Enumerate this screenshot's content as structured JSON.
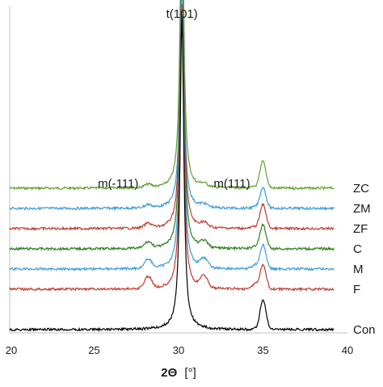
{
  "chart_data": {
    "type": "line",
    "title": "",
    "xlabel_symbol": "2Θ",
    "xlabel_unit": "[°]",
    "ylabel": "",
    "xlim": [
      20,
      40
    ],
    "x_ticks": [
      "20",
      "25",
      "30",
      "35",
      "40"
    ],
    "grid": false,
    "legend": "labels at right end of each trace",
    "annotations": [
      {
        "text": "t(101)",
        "x": 30.2
      },
      {
        "text": "m(-111)",
        "x": 28.2
      },
      {
        "text": "m(111)",
        "x": 31.5
      }
    ],
    "series": [
      {
        "name": "ZC",
        "color": "#5aa02c",
        "baseline": 0.875,
        "peak101": 1.0,
        "peak35": 0.09,
        "m111": 0.01
      },
      {
        "name": "ZM",
        "color": "#3a9ad9",
        "baseline": 0.75,
        "peak101": 0.85,
        "peak35": 0.07,
        "m111": 0.01
      },
      {
        "name": "ZF",
        "color": "#c0392b",
        "baseline": 0.625,
        "peak101": 0.93,
        "peak35": 0.08,
        "m111": 0.015
      },
      {
        "name": "C",
        "color": "#2e7d1f",
        "baseline": 0.5,
        "peak101": 0.98,
        "peak35": 0.08,
        "m111": 0.02
      },
      {
        "name": "M",
        "color": "#3a9ad9",
        "baseline": 0.375,
        "peak101": 0.97,
        "peak35": 0.08,
        "m111": 0.03
      },
      {
        "name": "F",
        "color": "#c0392b",
        "baseline": 0.25,
        "peak101": 0.95,
        "peak35": 0.08,
        "m111": 0.04
      },
      {
        "name": "Con",
        "color": "#000000",
        "baseline": 0.0,
        "peak101": 1.05,
        "peak35": 0.1,
        "m111": 0.0
      }
    ]
  }
}
